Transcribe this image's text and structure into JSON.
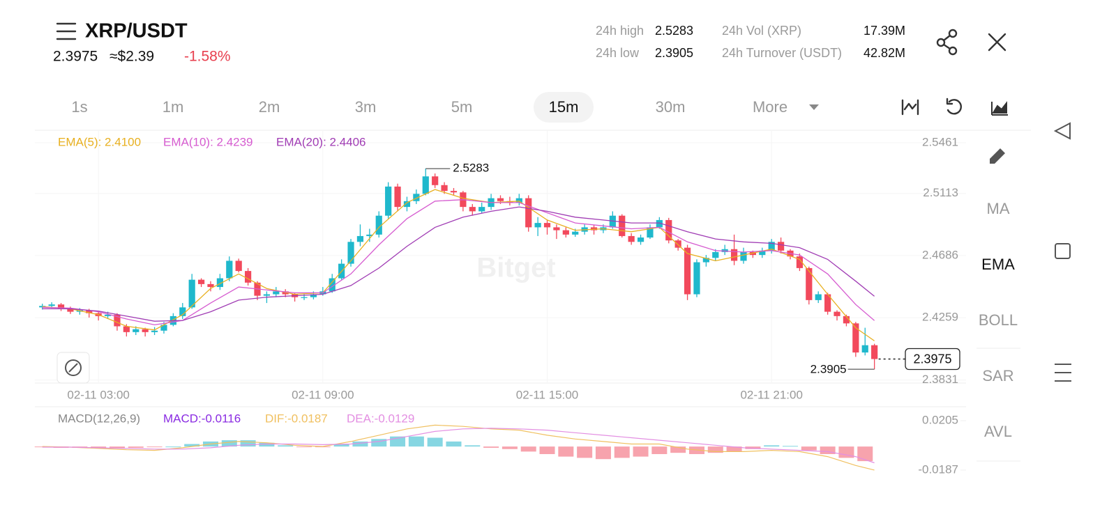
{
  "header": {
    "pair": "XRP/USDT",
    "price": "2.3975",
    "fiat": "≈$2.39",
    "change": "-1.58%",
    "stats": [
      {
        "label": "24h high",
        "value": "2.5283"
      },
      {
        "label": "24h low",
        "value": "2.3905"
      },
      {
        "label": "24h Vol (XRP)",
        "value": "17.39M"
      },
      {
        "label": "24h Turnover (USDT)",
        "value": "42.82M"
      }
    ]
  },
  "intervals": [
    "1s",
    "1m",
    "2m",
    "3m",
    "5m",
    "15m",
    "30m",
    "More"
  ],
  "active_interval": "15m",
  "indicators": [
    "MA",
    "EMA",
    "BOLL",
    "SAR",
    "AVL"
  ],
  "active_indicator": "EMA",
  "chart_data": [
    {
      "type": "candlestick",
      "watermark": "Bitget",
      "up_color": "#1fb8cc",
      "down_color": "#f2495c",
      "xlim": [
        -0.8,
        98.8
      ],
      "xticks": [
        {
          "value": 6,
          "label": "02-11 03:00"
        },
        {
          "value": 30,
          "label": "02-11 09:00"
        },
        {
          "value": 54,
          "label": "02-11 15:00"
        },
        {
          "value": 78,
          "label": "02-11 21:00"
        }
      ],
      "ylim": [
        2.381,
        2.5547
      ],
      "yticks": [
        2.5461,
        2.5113,
        2.4686,
        2.4259,
        2.3831
      ],
      "high_label": "2.5283",
      "low_label": "2.3905",
      "last_label": "2.3975",
      "candles": [
        [
          2.433,
          2.4355,
          2.4315,
          2.434
        ],
        [
          2.434,
          2.4365,
          2.4325,
          2.435
        ],
        [
          2.435,
          2.436,
          2.4305,
          2.432
        ],
        [
          2.432,
          2.4335,
          2.4285,
          2.43
        ],
        [
          2.43,
          2.4325,
          2.428,
          2.431
        ],
        [
          2.431,
          2.432,
          2.426,
          2.429
        ],
        [
          2.429,
          2.43,
          2.424,
          2.427
        ],
        [
          2.427,
          2.43,
          2.425,
          2.428
        ],
        [
          2.428,
          2.429,
          2.417,
          2.42
        ],
        [
          2.42,
          2.4215,
          2.413,
          2.416
        ],
        [
          2.416,
          2.42,
          2.414,
          2.418
        ],
        [
          2.418,
          2.419,
          2.413,
          2.416
        ],
        [
          2.416,
          2.4195,
          2.414,
          2.417
        ],
        [
          2.417,
          2.423,
          2.415,
          2.421
        ],
        [
          2.421,
          2.429,
          2.42,
          2.427
        ],
        [
          2.427,
          2.436,
          2.425,
          2.433
        ],
        [
          2.433,
          2.456,
          2.432,
          2.452
        ],
        [
          2.452,
          2.453,
          2.447,
          2.449
        ],
        [
          2.449,
          2.451,
          2.444,
          2.447
        ],
        [
          2.447,
          2.456,
          2.445,
          2.453
        ],
        [
          2.453,
          2.468,
          2.451,
          2.465
        ],
        [
          2.465,
          2.4665,
          2.457,
          2.458
        ],
        [
          2.458,
          2.46,
          2.448,
          2.45
        ],
        [
          2.45,
          2.451,
          2.438,
          2.441
        ],
        [
          2.441,
          2.444,
          2.436,
          2.442
        ],
        [
          2.442,
          2.447,
          2.44,
          2.444
        ],
        [
          2.444,
          2.4455,
          2.44,
          2.442
        ],
        [
          2.442,
          2.443,
          2.437,
          2.44
        ],
        [
          2.44,
          2.442,
          2.438,
          2.44
        ],
        [
          2.44,
          2.444,
          2.4385,
          2.442
        ],
        [
          2.442,
          2.447,
          2.441,
          2.444
        ],
        [
          2.444,
          2.456,
          2.443,
          2.453
        ],
        [
          2.453,
          2.466,
          2.452,
          2.463
        ],
        [
          2.463,
          2.48,
          2.461,
          2.478
        ],
        [
          2.478,
          2.49,
          2.475,
          2.482
        ],
        [
          2.482,
          2.487,
          2.478,
          2.483
        ],
        [
          2.483,
          2.499,
          2.481,
          2.496
        ],
        [
          2.496,
          2.519,
          2.494,
          2.516
        ],
        [
          2.516,
          2.518,
          2.499,
          2.502
        ],
        [
          2.502,
          2.509,
          2.499,
          2.506
        ],
        [
          2.506,
          2.514,
          2.504,
          2.511
        ],
        [
          2.511,
          2.5283,
          2.51,
          2.523
        ],
        [
          2.523,
          2.525,
          2.515,
          2.517
        ],
        [
          2.517,
          2.519,
          2.511,
          2.513
        ],
        [
          2.513,
          2.515,
          2.51,
          2.512
        ],
        [
          2.512,
          2.513,
          2.499,
          2.502
        ],
        [
          2.502,
          2.504,
          2.496,
          2.499
        ],
        [
          2.499,
          2.505,
          2.4975,
          2.502
        ],
        [
          2.502,
          2.511,
          2.5,
          2.508
        ],
        [
          2.508,
          2.51,
          2.504,
          2.506
        ],
        [
          2.506,
          2.509,
          2.503,
          2.505
        ],
        [
          2.505,
          2.511,
          2.503,
          2.508
        ],
        [
          2.508,
          2.51,
          2.485,
          2.488
        ],
        [
          2.488,
          2.495,
          2.482,
          2.491
        ],
        [
          2.491,
          2.493,
          2.483,
          2.488
        ],
        [
          2.488,
          2.49,
          2.48,
          2.486
        ],
        [
          2.486,
          2.488,
          2.481,
          2.483
        ],
        [
          2.483,
          2.487,
          2.4815,
          2.485
        ],
        [
          2.485,
          2.49,
          2.483,
          2.488
        ],
        [
          2.488,
          2.4895,
          2.483,
          2.486
        ],
        [
          2.486,
          2.49,
          2.484,
          2.488
        ],
        [
          2.488,
          2.499,
          2.487,
          2.496
        ],
        [
          2.496,
          2.497,
          2.481,
          2.482
        ],
        [
          2.482,
          2.484,
          2.476,
          2.478
        ],
        [
          2.478,
          2.483,
          2.476,
          2.481
        ],
        [
          2.481,
          2.49,
          2.48,
          2.488
        ],
        [
          2.488,
          2.495,
          2.487,
          2.493
        ],
        [
          2.493,
          2.4945,
          2.477,
          2.479
        ],
        [
          2.479,
          2.48,
          2.472,
          2.474
        ],
        [
          2.474,
          2.476,
          2.438,
          2.442
        ],
        [
          2.442,
          2.466,
          2.44,
          2.464
        ],
        [
          2.464,
          2.469,
          2.461,
          2.467
        ],
        [
          2.467,
          2.473,
          2.465,
          2.471
        ],
        [
          2.471,
          2.476,
          2.469,
          2.473
        ],
        [
          2.473,
          2.483,
          2.462,
          2.465
        ],
        [
          2.465,
          2.474,
          2.463,
          2.471
        ],
        [
          2.471,
          2.472,
          2.467,
          2.469
        ],
        [
          2.469,
          2.474,
          2.467,
          2.472
        ],
        [
          2.472,
          2.48,
          2.47,
          2.478
        ],
        [
          2.478,
          2.481,
          2.47,
          2.472
        ],
        [
          2.472,
          2.473,
          2.466,
          2.468
        ],
        [
          2.468,
          2.47,
          2.458,
          2.46
        ],
        [
          2.46,
          2.461,
          2.435,
          2.438
        ],
        [
          2.438,
          2.444,
          2.436,
          2.442
        ],
        [
          2.442,
          2.443,
          2.428,
          2.43
        ],
        [
          2.43,
          2.431,
          2.424,
          2.427
        ],
        [
          2.427,
          2.428,
          2.42,
          2.422
        ],
        [
          2.422,
          2.423,
          2.399,
          2.402
        ],
        [
          2.402,
          2.419,
          2.4,
          2.407
        ],
        [
          2.407,
          2.408,
          2.3905,
          2.3975
        ]
      ],
      "line_x": [
        0,
        3,
        6,
        9,
        12,
        15,
        18,
        21,
        24,
        27,
        30,
        33,
        36,
        39,
        42,
        45,
        48,
        51,
        54,
        57,
        60,
        63,
        66,
        69,
        72,
        75,
        78,
        81,
        84,
        87,
        89
      ],
      "series": [
        {
          "name": "EMA(5): 2.4100",
          "color": "#e8b020",
          "values": [
            2.4335,
            2.432,
            2.428,
            2.42,
            2.4175,
            2.428,
            2.446,
            2.456,
            2.446,
            2.442,
            2.443,
            2.465,
            2.488,
            2.505,
            2.514,
            2.508,
            2.505,
            2.506,
            2.493,
            2.486,
            2.487,
            2.485,
            2.488,
            2.47,
            2.465,
            2.469,
            2.473,
            2.466,
            2.442,
            2.419,
            2.41
          ]
        },
        {
          "name": "EMA(10): 2.4239",
          "color": "#d65cd0",
          "values": [
            2.433,
            2.4325,
            2.43,
            2.425,
            2.421,
            2.424,
            2.436,
            2.447,
            2.445,
            2.443,
            2.443,
            2.456,
            2.476,
            2.494,
            2.506,
            2.507,
            2.505,
            2.505,
            2.498,
            2.491,
            2.489,
            2.487,
            2.488,
            2.478,
            2.472,
            2.471,
            2.472,
            2.469,
            2.456,
            2.435,
            2.4239
          ]
        },
        {
          "name": "EMA(20): 2.4406",
          "color": "#a03cb4",
          "values": [
            2.432,
            2.432,
            2.4305,
            2.427,
            2.4235,
            2.424,
            2.43,
            2.438,
            2.44,
            2.441,
            2.442,
            2.448,
            2.46,
            2.475,
            2.488,
            2.495,
            2.499,
            2.502,
            2.499,
            2.495,
            2.493,
            2.491,
            2.491,
            2.485,
            2.48,
            2.478,
            2.477,
            2.474,
            2.466,
            2.451,
            2.4406
          ]
        }
      ]
    },
    {
      "type": "macd",
      "title": "MACD(12,26,9)",
      "xlim": [
        -0.8,
        98.8
      ],
      "ylim": [
        -0.0215,
        0.0305
      ],
      "yticks": [
        0.0205,
        -0.0187
      ],
      "histogram": {
        "name": "MACD:-0.0116",
        "color": "#8a2be2",
        "up_color": "#86d6e2",
        "down_color": "#f7a3ad",
        "x": [
          0,
          2,
          4,
          6,
          8,
          10,
          12,
          14,
          16,
          18,
          20,
          22,
          24,
          26,
          28,
          30,
          32,
          34,
          36,
          38,
          40,
          42,
          44,
          46,
          48,
          50,
          52,
          54,
          56,
          58,
          60,
          62,
          64,
          66,
          68,
          70,
          72,
          74,
          76,
          78,
          80,
          82,
          84,
          86,
          88
        ],
        "values": [
          -0.0005,
          -0.001,
          -0.001,
          -0.0015,
          -0.0015,
          -0.001,
          -0.0005,
          0.0,
          0.002,
          0.004,
          0.005,
          0.005,
          0.003,
          0.001,
          -0.0005,
          -0.0005,
          0.002,
          0.004,
          0.006,
          0.008,
          0.008,
          0.007,
          0.004,
          0.001,
          -0.001,
          -0.002,
          -0.004,
          -0.006,
          -0.008,
          -0.009,
          -0.01,
          -0.009,
          -0.008,
          -0.006,
          -0.005,
          -0.006,
          -0.005,
          -0.004,
          -0.002,
          0.001,
          0.0005,
          -0.003,
          -0.006,
          -0.009,
          -0.0116
        ]
      },
      "line_x": [
        0,
        3,
        6,
        9,
        12,
        15,
        18,
        21,
        24,
        27,
        30,
        33,
        36,
        39,
        42,
        45,
        48,
        51,
        54,
        57,
        60,
        63,
        66,
        69,
        72,
        75,
        78,
        81,
        84,
        87,
        89
      ],
      "series": [
        {
          "name": "DIF:-0.0187",
          "color": "#f0c060",
          "values": [
            0.0,
            -0.0005,
            -0.0015,
            -0.0025,
            -0.003,
            -0.001,
            0.002,
            0.004,
            0.003,
            0.001,
            0.0,
            0.004,
            0.009,
            0.014,
            0.017,
            0.016,
            0.014,
            0.013,
            0.009,
            0.006,
            0.004,
            0.002,
            0.002,
            -0.002,
            -0.004,
            -0.004,
            -0.003,
            -0.004,
            -0.008,
            -0.015,
            -0.0187
          ]
        },
        {
          "name": "DEA:-0.0129",
          "color": "#e38fe2",
          "values": [
            -0.0005,
            -0.0005,
            -0.001,
            -0.0015,
            -0.002,
            -0.002,
            -0.001,
            0.001,
            0.002,
            0.002,
            0.0015,
            0.002,
            0.004,
            0.008,
            0.012,
            0.014,
            0.0145,
            0.014,
            0.013,
            0.011,
            0.009,
            0.007,
            0.005,
            0.003,
            0.001,
            -0.001,
            -0.002,
            -0.003,
            -0.004,
            -0.008,
            -0.0129
          ]
        }
      ]
    }
  ]
}
